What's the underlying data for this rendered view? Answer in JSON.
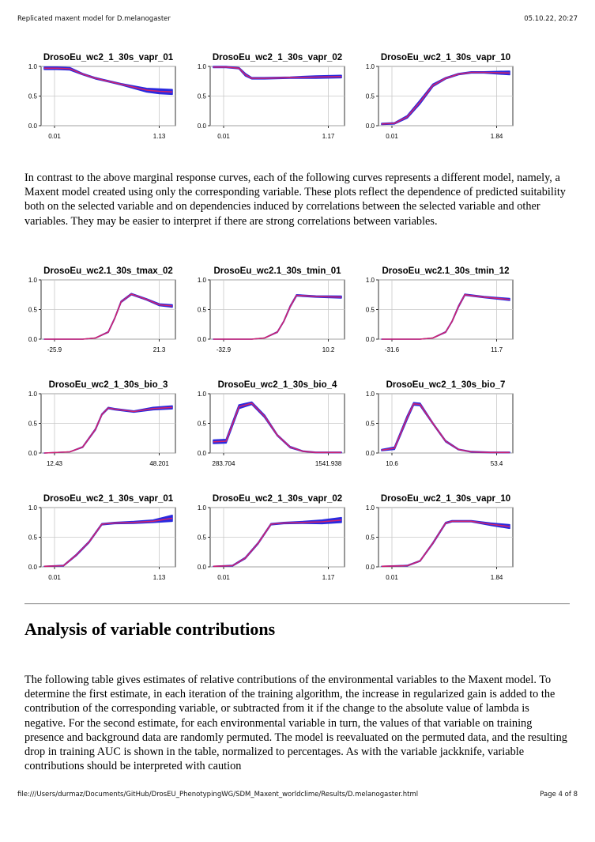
{
  "header": {
    "title": "Replicated maxent model for D.melanogaster",
    "datetime": "05.10.22, 20:27"
  },
  "footer": {
    "path": "file:///Users/durmaz/Documents/GitHub/DrosEU_PhenotypingWG/SDM_Maxent_worldclime/Results/D.melanogaster.html",
    "page": "Page 4 of 8"
  },
  "paragraph1": "In contrast to the above marginal response curves, each of the following curves represents a different model, namely, a Maxent model created using only the corresponding variable. These plots reflect the dependence of predicted suitability both on the selected variable and on dependencies induced by correlations between the selected variable and other variables. They may be easier to interpret if there are strong correlations between variables.",
  "section_title": "Analysis of variable contributions",
  "paragraph2": "The following table gives estimates of relative contributions of the environmental variables to the Maxent model. To determine the first estimate, in each iteration of the training algorithm, the increase in regularized gain is added to the contribution of the corresponding variable, or subtracted from it if the change to the absolute value of lambda is negative. For the second estimate, for each environmental variable in turn, the values of that variable on training presence and background data are randomly permuted. The model is reevaluated on the permuted data, and the resulting drop in training AUC is shown in the table, normalized to percentages. As with the variable jackknife, variable contributions should be interpreted with caution",
  "colors": {
    "mean": "#d0246e",
    "band": "#2a2adf"
  },
  "chart_data": [
    {
      "type": "line",
      "title": "DrosoEu_wc2_1_30s_vapr_01",
      "xlim": [
        0.01,
        1.13
      ],
      "ylim": [
        0,
        1
      ],
      "x_tick_labels": [
        "0.01",
        "1.13"
      ],
      "y_tick_labels": [
        "0.0",
        "0.5",
        "1.0"
      ],
      "series": [
        {
          "name": "mean",
          "x": [
            0,
            0.1,
            0.2,
            0.3,
            0.4,
            0.5,
            0.6,
            0.7,
            0.8,
            0.9,
            1.0
          ],
          "values": [
            0.97,
            0.97,
            0.96,
            0.87,
            0.8,
            0.75,
            0.7,
            0.65,
            0.6,
            0.58,
            0.57
          ],
          "band": [
            0.02,
            0.02,
            0.02,
            0.01,
            0.01,
            0.01,
            0.01,
            0.02,
            0.03,
            0.04,
            0.04
          ]
        }
      ]
    },
    {
      "type": "line",
      "title": "DrosoEu_wc2_1_30s_vapr_02",
      "xlim": [
        0.01,
        1.17
      ],
      "ylim": [
        0,
        1
      ],
      "x_tick_labels": [
        "0.01",
        "1.17"
      ],
      "y_tick_labels": [
        "0.0",
        "0.5",
        "1.0"
      ],
      "series": [
        {
          "name": "mean",
          "x": [
            0,
            0.1,
            0.2,
            0.25,
            0.3,
            0.4,
            0.6,
            0.8,
            1.0
          ],
          "values": [
            0.99,
            0.99,
            0.97,
            0.86,
            0.8,
            0.8,
            0.81,
            0.82,
            0.83
          ],
          "band": [
            0.01,
            0.01,
            0.01,
            0.02,
            0.01,
            0.01,
            0.01,
            0.02,
            0.02
          ]
        }
      ]
    },
    {
      "type": "line",
      "title": "DrosoEu_wc2_1_30s_vapr_10",
      "xlim": [
        0.01,
        1.84
      ],
      "ylim": [
        0,
        1
      ],
      "x_tick_labels": [
        "0.01",
        "1.84"
      ],
      "y_tick_labels": [
        "0.0",
        "0.5",
        "1.0"
      ],
      "series": [
        {
          "name": "mean",
          "x": [
            0,
            0.1,
            0.2,
            0.3,
            0.4,
            0.5,
            0.6,
            0.7,
            0.8,
            1.0
          ],
          "values": [
            0.03,
            0.04,
            0.15,
            0.4,
            0.68,
            0.8,
            0.87,
            0.9,
            0.9,
            0.89
          ],
          "band": [
            0.01,
            0.01,
            0.02,
            0.03,
            0.02,
            0.01,
            0.01,
            0.01,
            0.01,
            0.03
          ]
        }
      ]
    },
    {
      "type": "line",
      "title": "DrosoEu_wc2.1_30s_tmax_02",
      "xlim": [
        -25.9,
        21.3
      ],
      "ylim": [
        0,
        1
      ],
      "x_tick_labels": [
        "-25.9",
        "21.3"
      ],
      "y_tick_labels": [
        "0.0",
        "0.5",
        "1.0"
      ],
      "series": [
        {
          "name": "mean",
          "x": [
            0,
            0.2,
            0.3,
            0.4,
            0.5,
            0.55,
            0.6,
            0.68,
            0.8,
            0.9,
            1.0
          ],
          "values": [
            0.0,
            0.0,
            0.0,
            0.02,
            0.12,
            0.35,
            0.63,
            0.76,
            0.67,
            0.58,
            0.56
          ],
          "band": [
            0,
            0,
            0,
            0,
            0.005,
            0.005,
            0.01,
            0.01,
            0.01,
            0.015,
            0.02
          ]
        }
      ]
    },
    {
      "type": "line",
      "title": "DrosoEu_wc2.1_30s_tmin_01",
      "xlim": [
        -32.9,
        10.2
      ],
      "ylim": [
        0,
        1
      ],
      "x_tick_labels": [
        "-32.9",
        "10.2"
      ],
      "y_tick_labels": [
        "0.0",
        "0.5",
        "1.0"
      ],
      "series": [
        {
          "name": "mean",
          "x": [
            0,
            0.3,
            0.4,
            0.5,
            0.55,
            0.6,
            0.65,
            0.8,
            1.0
          ],
          "values": [
            0.0,
            0.0,
            0.02,
            0.12,
            0.3,
            0.55,
            0.74,
            0.72,
            0.71
          ],
          "band": [
            0,
            0,
            0,
            0.005,
            0.005,
            0.01,
            0.01,
            0.01,
            0.015
          ]
        }
      ]
    },
    {
      "type": "line",
      "title": "DrosoEu_wc2.1_30s_tmin_12",
      "xlim": [
        -31.6,
        11.7
      ],
      "ylim": [
        0,
        1
      ],
      "x_tick_labels": [
        "-31.6",
        "11.7"
      ],
      "y_tick_labels": [
        "0.0",
        "0.5",
        "1.0"
      ],
      "series": [
        {
          "name": "mean",
          "x": [
            0,
            0.3,
            0.4,
            0.5,
            0.55,
            0.6,
            0.65,
            0.8,
            1.0
          ],
          "values": [
            0.0,
            0.0,
            0.02,
            0.12,
            0.3,
            0.55,
            0.75,
            0.71,
            0.67
          ],
          "band": [
            0,
            0,
            0,
            0.005,
            0.005,
            0.01,
            0.01,
            0.01,
            0.015
          ]
        }
      ]
    },
    {
      "type": "line",
      "title": "DrosoEu_wc2_1_30s_bio_3",
      "xlim": [
        12.43,
        48.201
      ],
      "ylim": [
        0,
        1
      ],
      "x_tick_labels": [
        "12.43",
        "48.201"
      ],
      "y_tick_labels": [
        "0.0",
        "0.5",
        "1.0"
      ],
      "series": [
        {
          "name": "mean",
          "x": [
            0,
            0.2,
            0.3,
            0.4,
            0.45,
            0.5,
            0.55,
            0.7,
            0.85,
            1.0
          ],
          "values": [
            0.0,
            0.02,
            0.1,
            0.4,
            0.65,
            0.76,
            0.74,
            0.7,
            0.75,
            0.77
          ],
          "band": [
            0,
            0,
            0.005,
            0.01,
            0.01,
            0.01,
            0.01,
            0.01,
            0.02,
            0.025
          ]
        }
      ]
    },
    {
      "type": "line",
      "title": "DrosoEu_wc2_1_30s_bio_4",
      "xlim": [
        283.704,
        1541.938
      ],
      "ylim": [
        0,
        1
      ],
      "x_tick_labels": [
        "283.704",
        "1541.938"
      ],
      "y_tick_labels": [
        "0.0",
        "0.5",
        "1.0"
      ],
      "series": [
        {
          "name": "mean",
          "x": [
            0,
            0.1,
            0.2,
            0.3,
            0.4,
            0.5,
            0.6,
            0.7,
            0.8,
            1.0
          ],
          "values": [
            0.19,
            0.2,
            0.78,
            0.84,
            0.62,
            0.3,
            0.1,
            0.03,
            0.01,
            0.01
          ],
          "band": [
            0.03,
            0.03,
            0.03,
            0.02,
            0.02,
            0.01,
            0.01,
            0.005,
            0.005,
            0.005
          ]
        }
      ]
    },
    {
      "type": "line",
      "title": "DrosoEu_wc2_1_30s_bio_7",
      "xlim": [
        10.6,
        53.4
      ],
      "ylim": [
        0,
        1
      ],
      "x_tick_labels": [
        "10.6",
        "53.4"
      ],
      "y_tick_labels": [
        "0.0",
        "0.5",
        "1.0"
      ],
      "series": [
        {
          "name": "mean",
          "x": [
            0,
            0.1,
            0.2,
            0.25,
            0.3,
            0.4,
            0.5,
            0.6,
            0.7,
            0.85,
            1.0
          ],
          "values": [
            0.05,
            0.08,
            0.6,
            0.83,
            0.82,
            0.5,
            0.2,
            0.06,
            0.02,
            0.01,
            0.01
          ],
          "band": [
            0.01,
            0.02,
            0.03,
            0.02,
            0.02,
            0.01,
            0.01,
            0.005,
            0.005,
            0.005,
            0.005
          ]
        }
      ]
    },
    {
      "type": "line",
      "title": "DrosoEu_wc2_1_30s_vapr_01",
      "xlim": [
        0.01,
        1.13
      ],
      "ylim": [
        0,
        1
      ],
      "x_tick_labels": [
        "0.01",
        "1.13"
      ],
      "y_tick_labels": [
        "0.0",
        "0.5",
        "1.0"
      ],
      "series": [
        {
          "name": "mean",
          "x": [
            0,
            0.15,
            0.25,
            0.35,
            0.45,
            0.55,
            0.7,
            0.85,
            1.0
          ],
          "values": [
            0.01,
            0.02,
            0.2,
            0.42,
            0.72,
            0.74,
            0.75,
            0.77,
            0.82
          ],
          "band": [
            0,
            0.005,
            0.01,
            0.01,
            0.01,
            0.01,
            0.015,
            0.02,
            0.05
          ]
        }
      ]
    },
    {
      "type": "line",
      "title": "DrosoEu_wc2_1_30s_vapr_02",
      "xlim": [
        0.01,
        1.17
      ],
      "ylim": [
        0,
        1
      ],
      "x_tick_labels": [
        "0.01",
        "1.17"
      ],
      "y_tick_labels": [
        "0.0",
        "0.5",
        "1.0"
      ],
      "series": [
        {
          "name": "mean",
          "x": [
            0,
            0.15,
            0.25,
            0.35,
            0.45,
            0.55,
            0.7,
            0.85,
            1.0
          ],
          "values": [
            0.01,
            0.02,
            0.15,
            0.4,
            0.72,
            0.74,
            0.75,
            0.76,
            0.79
          ],
          "band": [
            0,
            0.005,
            0.01,
            0.01,
            0.01,
            0.01,
            0.015,
            0.03,
            0.04
          ]
        }
      ]
    },
    {
      "type": "line",
      "title": "DrosoEu_wc2_1_30s_vapr_10",
      "xlim": [
        0.01,
        1.84
      ],
      "ylim": [
        0,
        1
      ],
      "x_tick_labels": [
        "0.01",
        "1.84"
      ],
      "y_tick_labels": [
        "0.0",
        "0.5",
        "1.0"
      ],
      "series": [
        {
          "name": "mean",
          "x": [
            0,
            0.2,
            0.3,
            0.4,
            0.5,
            0.55,
            0.7,
            0.85,
            1.0
          ],
          "values": [
            0.01,
            0.02,
            0.1,
            0.4,
            0.74,
            0.77,
            0.77,
            0.72,
            0.68
          ],
          "band": [
            0,
            0.005,
            0.005,
            0.01,
            0.01,
            0.01,
            0.01,
            0.02,
            0.03
          ]
        }
      ]
    }
  ]
}
